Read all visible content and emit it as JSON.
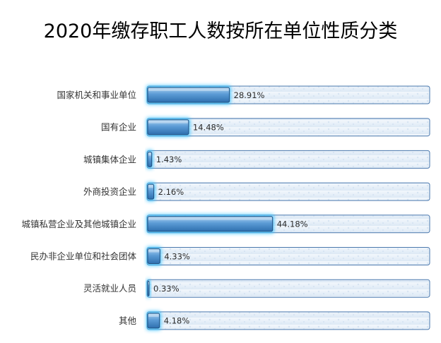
{
  "chart_data": {
    "type": "bar",
    "orientation": "horizontal",
    "title": "2020年缴存职工人数按所在单位性质分类",
    "categories": [
      "国家机关和事业单位",
      "国有企业",
      "城镇集体企业",
      "外商投资企业",
      "城镇私营企业及其他城镇企业",
      "民办非企业单位和社会团体",
      "灵活就业人员",
      "其他"
    ],
    "values": [
      28.91,
      14.48,
      1.43,
      2.16,
      44.18,
      4.33,
      0.33,
      4.18
    ],
    "value_labels": [
      "28.91%",
      "14.48%",
      "1.43%",
      "2.16%",
      "44.18%",
      "4.33%",
      "0.33%",
      "4.18%"
    ],
    "xlim": [
      0,
      100
    ],
    "grid": false,
    "legend": "none",
    "colors": {
      "bar": "#5b9bd5",
      "bar_dark": "#2e6fae",
      "glow": "#39c2ff",
      "track_fill": "#e4eef8",
      "track_border": "#4a78ad"
    }
  }
}
